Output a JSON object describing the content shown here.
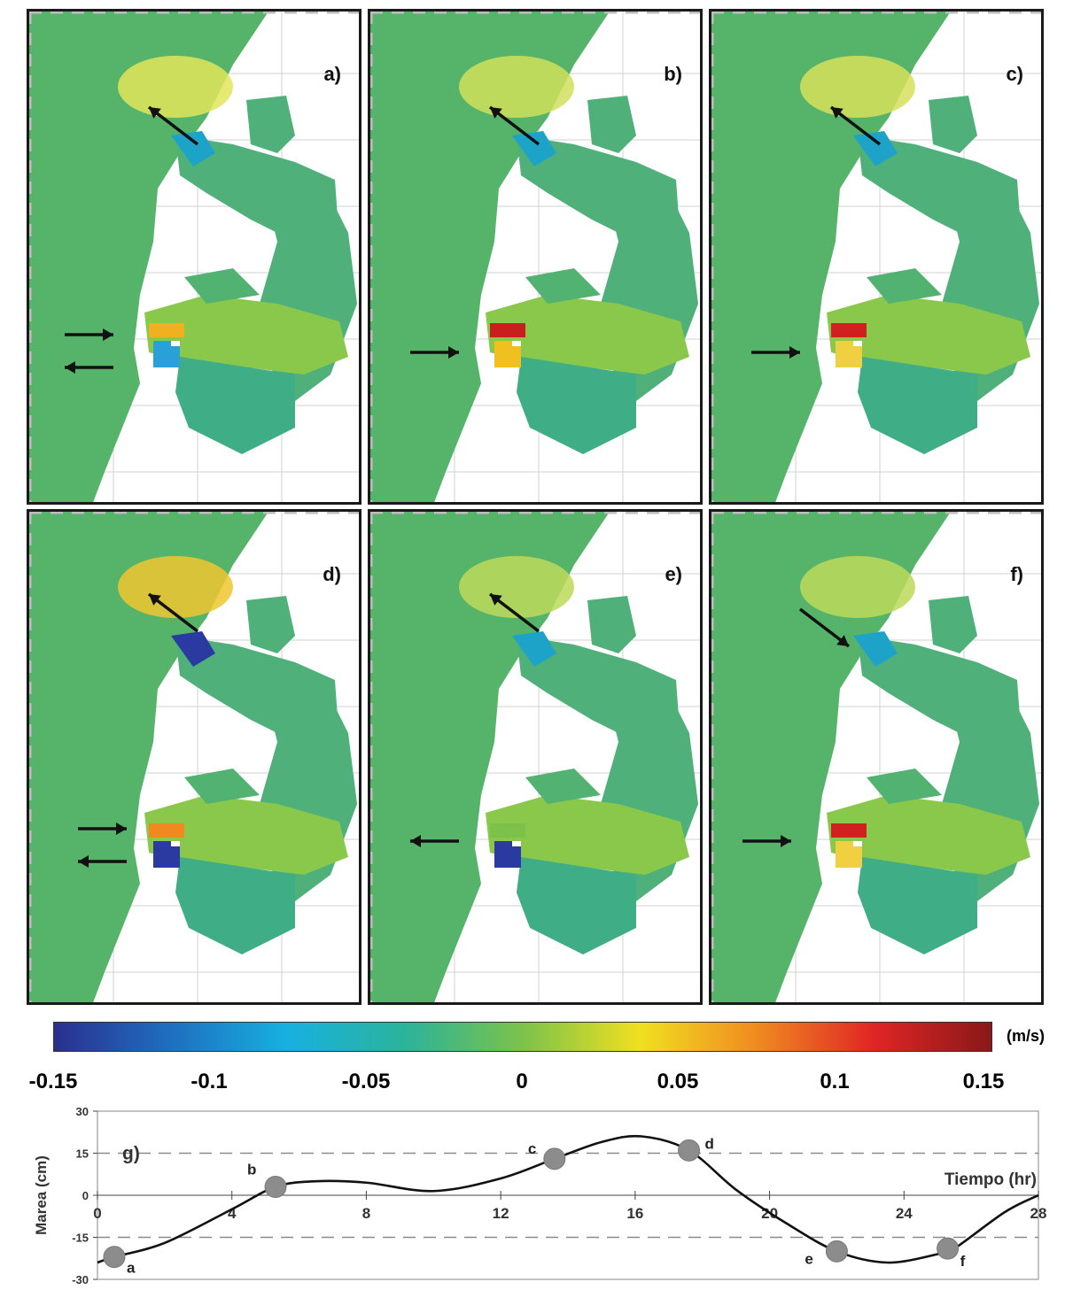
{
  "panels": [
    {
      "id": "a",
      "label": "a)"
    },
    {
      "id": "b",
      "label": "b)"
    },
    {
      "id": "c",
      "label": "c)"
    },
    {
      "id": "d",
      "label": "d)"
    },
    {
      "id": "e",
      "label": "e)"
    },
    {
      "id": "f",
      "label": "f)"
    }
  ],
  "colorbar": {
    "unit": "(m/s)",
    "ticks": [
      "-0.15",
      "-0.1",
      "-0.05",
      "0",
      "0.05",
      "0.1",
      "0.15"
    ],
    "colors": [
      "#2b2f8f",
      "#1f6fc0",
      "#17b1e0",
      "#2bb39a",
      "#7cc24a",
      "#f0e020",
      "#f08a20",
      "#e02525",
      "#8a1818"
    ]
  },
  "chart_data": {
    "type": "line",
    "title": "g)",
    "xlabel": "Tiempo (hr)",
    "ylabel": "Marea (cm)",
    "xlim": [
      0,
      28
    ],
    "ylim": [
      -30,
      30
    ],
    "xticks": [
      "0",
      "4",
      "8",
      "12",
      "16",
      "20",
      "24",
      "28"
    ],
    "yticks": [
      "30",
      "15",
      "0",
      "-15",
      "-30"
    ],
    "reference_lines": [
      15,
      -15
    ],
    "series": [
      {
        "x": [
          0,
          0.5,
          2,
          4,
          5.3,
          6.5,
          8,
          10,
          12,
          13.6,
          15,
          16.2,
          17.6,
          19,
          20.5,
          22,
          23.5,
          25,
          25.5,
          27,
          28
        ],
        "y": [
          -24,
          -22,
          -17,
          -5,
          3,
          5,
          4.5,
          1.5,
          6,
          13,
          19,
          21,
          16,
          2,
          -10,
          -20,
          -24,
          -21,
          -19,
          -6,
          0
        ]
      }
    ],
    "markers": [
      {
        "label": "a",
        "x": 0.5,
        "y": -22
      },
      {
        "label": "b",
        "x": 5.3,
        "y": 3
      },
      {
        "label": "c",
        "x": 13.6,
        "y": 13
      },
      {
        "label": "d",
        "x": 17.6,
        "y": 16
      },
      {
        "label": "e",
        "x": 22.0,
        "y": -20
      },
      {
        "label": "f",
        "x": 25.3,
        "y": -19
      }
    ]
  }
}
